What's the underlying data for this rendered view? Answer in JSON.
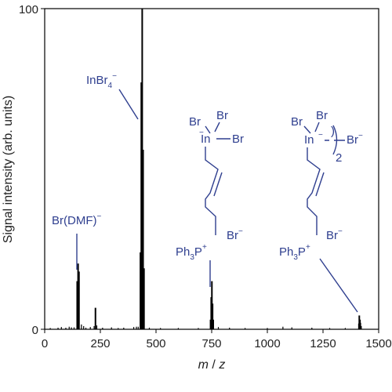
{
  "chart_data": {
    "type": "bar",
    "xlabel_parts": [
      "m",
      " / ",
      "z"
    ],
    "ylabel": "Signal intensity (arb. units)",
    "xlim": [
      0,
      1500
    ],
    "ylim": [
      0,
      100
    ],
    "xticks": [
      "0",
      "250",
      "500",
      "750",
      "1000",
      "1250",
      "1500"
    ],
    "yticks": [
      "0",
      "100"
    ],
    "grid": false,
    "peaks": [
      {
        "x": 25,
        "y": 0.4
      },
      {
        "x": 60,
        "y": 0.5
      },
      {
        "x": 75,
        "y": 0.7
      },
      {
        "x": 95,
        "y": 0.5
      },
      {
        "x": 110,
        "y": 0.8
      },
      {
        "x": 120,
        "y": 0.6
      },
      {
        "x": 132,
        "y": 0.6
      },
      {
        "x": 146,
        "y": 15
      },
      {
        "x": 150,
        "y": 20.5
      },
      {
        "x": 154,
        "y": 18
      },
      {
        "x": 165,
        "y": 1.5
      },
      {
        "x": 175,
        "y": 1
      },
      {
        "x": 185,
        "y": 0.5
      },
      {
        "x": 205,
        "y": 0.7
      },
      {
        "x": 222,
        "y": 1
      },
      {
        "x": 228,
        "y": 6.7
      },
      {
        "x": 234,
        "y": 1.2
      },
      {
        "x": 260,
        "y": 0.5
      },
      {
        "x": 300,
        "y": 0.6
      },
      {
        "x": 330,
        "y": 0.4
      },
      {
        "x": 355,
        "y": 0.5
      },
      {
        "x": 400,
        "y": 0.7
      },
      {
        "x": 412,
        "y": 0.8
      },
      {
        "x": 420,
        "y": 0.8
      },
      {
        "x": 430,
        "y": 24
      },
      {
        "x": 434,
        "y": 77
      },
      {
        "x": 438,
        "y": 100
      },
      {
        "x": 442,
        "y": 56
      },
      {
        "x": 446,
        "y": 19
      },
      {
        "x": 470,
        "y": 0.5
      },
      {
        "x": 520,
        "y": 0.4
      },
      {
        "x": 600,
        "y": 0.4
      },
      {
        "x": 690,
        "y": 0.4
      },
      {
        "x": 745,
        "y": 3
      },
      {
        "x": 748,
        "y": 10
      },
      {
        "x": 751,
        "y": 15
      },
      {
        "x": 754,
        "y": 8
      },
      {
        "x": 757,
        "y": 3
      },
      {
        "x": 780,
        "y": 0.7
      },
      {
        "x": 830,
        "y": 0.5
      },
      {
        "x": 900,
        "y": 0.4
      },
      {
        "x": 1000,
        "y": 0.4
      },
      {
        "x": 1070,
        "y": 0.8
      },
      {
        "x": 1110,
        "y": 0.6
      },
      {
        "x": 1200,
        "y": 0.5
      },
      {
        "x": 1280,
        "y": 0.4
      },
      {
        "x": 1350,
        "y": 0.4
      },
      {
        "x": 1410,
        "y": 1.8
      },
      {
        "x": 1413,
        "y": 4.3
      },
      {
        "x": 1416,
        "y": 3
      },
      {
        "x": 1419,
        "y": 2
      },
      {
        "x": 1422,
        "y": 1
      }
    ]
  },
  "annotations": {
    "brdmf": {
      "main": "Br(DMF)",
      "sup": "−"
    },
    "inbr4": {
      "main": "InBr",
      "sub": "4",
      "sup": "−"
    },
    "s1": {
      "br_left": "Br",
      "br_top": "Br",
      "in": "In",
      "br_right": "Br",
      "minus": "−",
      "ph3p_main": "Ph",
      "ph3p_sub": "3",
      "ph3p_p": "P",
      "plus": "+",
      "counter_main": "Br",
      "counter_sup": "−"
    },
    "s2": {
      "br_left": "Br",
      "br_top": "Br",
      "in": "In",
      "minus": "−",
      "br_right": "Br",
      "br_right_sup": "−",
      "paren": ")",
      "paren_sub": "2",
      "ph3p_main": "Ph",
      "ph3p_sub": "3",
      "ph3p_p": "P",
      "plus": "+",
      "counter_main": "Br",
      "counter_sup": "−"
    }
  }
}
